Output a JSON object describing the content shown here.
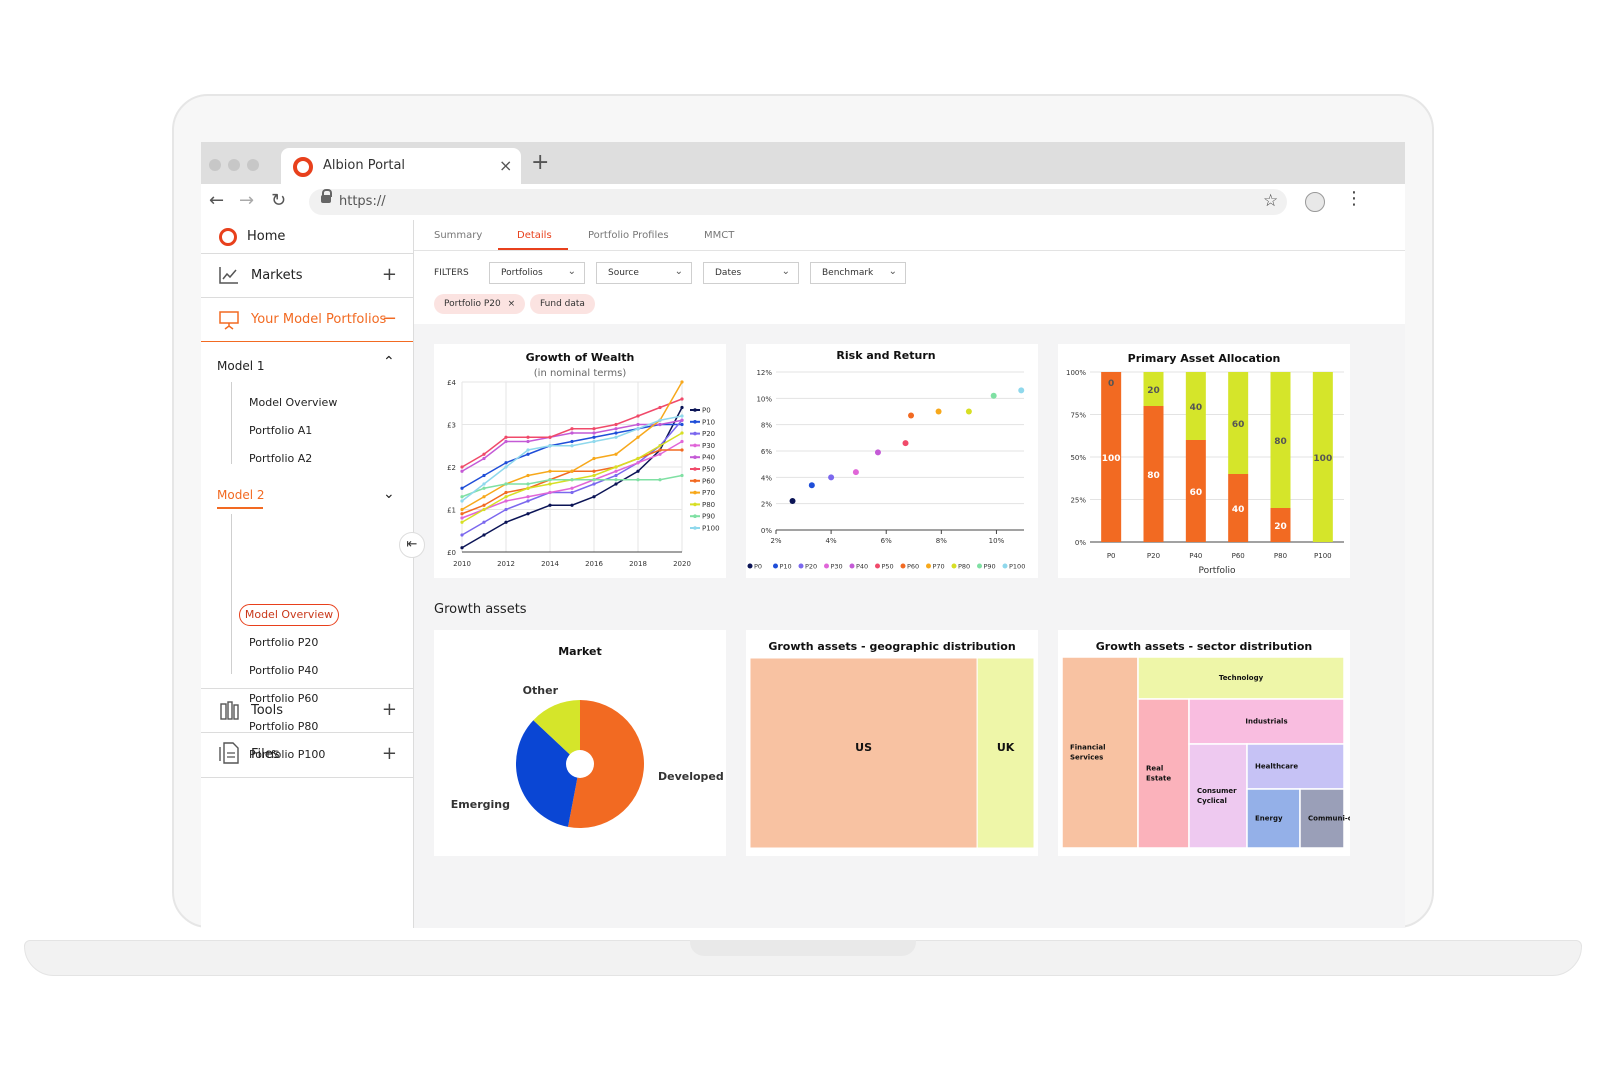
{
  "browser": {
    "tab_title": "Albion Portal",
    "url": "https://"
  },
  "sidebar": {
    "home": "Home",
    "markets": "Markets",
    "your_model_portfolios": "Your Model Portfolios",
    "model1": {
      "label": "Model 1",
      "items": [
        "Model Overview",
        "Portfolio A1",
        "Portfolio A2"
      ]
    },
    "model2": {
      "label": "Model 2",
      "items": [
        "Model Overview",
        "Portfolio P20",
        "Portfolio P40",
        "Portfolio P60",
        "Portfolio P80",
        "Portfolio P100"
      ]
    },
    "tools": "Tools",
    "files": "Files"
  },
  "tabs": [
    "Summary",
    "Details",
    "Portfolio Profiles",
    "MMCT"
  ],
  "active_tab": "Details",
  "filters": {
    "label": "FILTERS",
    "dropdowns": [
      "Portfolios",
      "Source",
      "Dates",
      "Benchmark"
    ],
    "chips": [
      "Portfolio P20",
      "Fund data"
    ]
  },
  "section_title": "Growth assets",
  "colors": {
    "accent": "#e8401c",
    "P0": "#0b1456",
    "P10": "#1f4ed8",
    "P20": "#7b68ee",
    "P30": "#e066d8",
    "P40": "#c45ad6",
    "P50": "#f04a6a",
    "P60": "#f26a22",
    "P70": "#f7a81b",
    "P80": "#d7df24",
    "P90": "#7fe0a3",
    "P100": "#8fd8ec"
  },
  "chart_data": [
    {
      "type": "line",
      "title": "Growth of Wealth",
      "subtitle": "(in nominal terms)",
      "x": [
        2010,
        2011,
        2012,
        2013,
        2014,
        2015,
        2016,
        2017,
        2018,
        2019,
        2020
      ],
      "xticks": [
        "2010",
        "2012",
        "2014",
        "2016",
        "2018",
        "2020"
      ],
      "yticks": [
        "£0",
        "£1",
        "£2",
        "£3",
        "£4"
      ],
      "ylim": [
        0,
        4
      ],
      "series": [
        {
          "name": "P0",
          "values": [
            0.1,
            0.4,
            0.7,
            0.9,
            1.1,
            1.1,
            1.3,
            1.6,
            1.9,
            2.4,
            3.4
          ]
        },
        {
          "name": "P10",
          "values": [
            1.5,
            1.8,
            2.1,
            2.3,
            2.5,
            2.6,
            2.7,
            2.8,
            2.9,
            3.0,
            3.0
          ]
        },
        {
          "name": "P20",
          "values": [
            0.4,
            0.7,
            1.0,
            1.2,
            1.4,
            1.4,
            1.6,
            1.8,
            2.1,
            2.5,
            3.1
          ]
        },
        {
          "name": "P30",
          "values": [
            0.8,
            1.0,
            1.2,
            1.3,
            1.4,
            1.5,
            1.7,
            1.9,
            2.1,
            2.3,
            2.6
          ]
        },
        {
          "name": "P40",
          "values": [
            1.9,
            2.2,
            2.6,
            2.6,
            2.7,
            2.8,
            2.8,
            2.9,
            3.0,
            3.0,
            3.1
          ]
        },
        {
          "name": "P50",
          "values": [
            2.0,
            2.3,
            2.7,
            2.7,
            2.7,
            2.9,
            2.9,
            3.0,
            3.2,
            3.4,
            3.6
          ]
        },
        {
          "name": "P60",
          "values": [
            0.9,
            1.1,
            1.4,
            1.5,
            1.7,
            1.9,
            1.9,
            2.0,
            2.2,
            2.4,
            2.4
          ]
        },
        {
          "name": "P70",
          "values": [
            1.0,
            1.3,
            1.6,
            1.8,
            1.9,
            1.9,
            2.2,
            2.3,
            2.7,
            3.1,
            4.0
          ]
        },
        {
          "name": "P80",
          "values": [
            0.7,
            1.0,
            1.3,
            1.5,
            1.6,
            1.7,
            1.8,
            2.0,
            2.2,
            2.5,
            2.8
          ]
        },
        {
          "name": "P90",
          "values": [
            1.3,
            1.5,
            1.6,
            1.6,
            1.7,
            1.7,
            1.7,
            1.7,
            1.7,
            1.7,
            1.8
          ]
        },
        {
          "name": "P100",
          "values": [
            1.2,
            1.6,
            2.0,
            2.4,
            2.5,
            2.5,
            2.6,
            2.7,
            2.9,
            3.1,
            3.2
          ]
        }
      ]
    },
    {
      "type": "scatter",
      "title": "Risk and Return",
      "xticks": [
        "2%",
        "4%",
        "6%",
        "8%",
        "10%"
      ],
      "yticks": [
        "0%",
        "2%",
        "4%",
        "6%",
        "8%",
        "10%",
        "12%"
      ],
      "xlim": [
        2,
        11
      ],
      "ylim": [
        0,
        12
      ],
      "points": [
        {
          "name": "P0",
          "x": 2.6,
          "y": 2.2
        },
        {
          "name": "P10",
          "x": 3.3,
          "y": 3.4
        },
        {
          "name": "P20",
          "x": 4.0,
          "y": 4.0
        },
        {
          "name": "P30",
          "x": 4.9,
          "y": 4.4
        },
        {
          "name": "P40",
          "x": 5.7,
          "y": 5.9
        },
        {
          "name": "P50",
          "x": 6.7,
          "y": 6.6
        },
        {
          "name": "P60",
          "x": 6.9,
          "y": 8.7
        },
        {
          "name": "P70",
          "x": 7.9,
          "y": 9.0
        },
        {
          "name": "P80",
          "x": 9.0,
          "y": 9.0
        },
        {
          "name": "P90",
          "x": 9.9,
          "y": 10.2
        },
        {
          "name": "P100",
          "x": 10.9,
          "y": 10.6
        }
      ]
    },
    {
      "type": "bar",
      "title": "Primary Asset Allocation",
      "xlabel": "Portfolio",
      "categories": [
        "P0",
        "P20",
        "P40",
        "P60",
        "P80",
        "P100"
      ],
      "yticks": [
        "0%",
        "25%",
        "50%",
        "75%",
        "100%"
      ],
      "ylim": [
        0,
        100
      ],
      "series": [
        {
          "color": "#f26a22",
          "values": [
            100,
            80,
            60,
            40,
            20,
            0
          ]
        },
        {
          "color": "#d5e52a",
          "values": [
            0,
            20,
            40,
            60,
            80,
            100
          ]
        }
      ]
    },
    {
      "type": "pie",
      "title": "Market",
      "slices": [
        {
          "label": "Developed",
          "value": 53,
          "color": "#f26a22"
        },
        {
          "label": "Emerging",
          "value": 34,
          "color": "#0a46d4"
        },
        {
          "label": "Other",
          "value": 13,
          "color": "#d5e52a"
        }
      ]
    },
    {
      "type": "treemap",
      "title": "Growth assets - geographic distribution",
      "cells": [
        {
          "label": "US",
          "value": 80,
          "color": "#f8c2a2"
        },
        {
          "label": "UK",
          "value": 20,
          "color": "#eef6a8"
        }
      ]
    },
    {
      "type": "treemap",
      "title": "Growth assets - sector distribution",
      "cells": [
        {
          "label": "Financial Services",
          "color": "#f8c2a2"
        },
        {
          "label": "Technology",
          "color": "#eef6a8"
        },
        {
          "label": "Real Estate",
          "color": "#fbb2bb"
        },
        {
          "label": "Industrials",
          "color": "#f9bde0"
        },
        {
          "label": "Consumer Cyclical",
          "color": "#eec9f0"
        },
        {
          "label": "Healthcare",
          "color": "#c6c2f5"
        },
        {
          "label": "Energy",
          "color": "#94b0e8"
        },
        {
          "label": "Communi-cation",
          "color": "#9a9fb8"
        }
      ]
    }
  ]
}
